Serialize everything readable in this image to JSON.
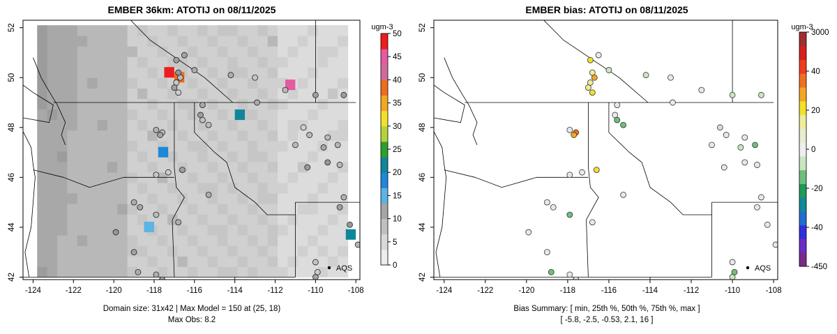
{
  "left_panel": {
    "title": "EMBER 36km: ATOTIJ on 08/11/2025",
    "footer_line1": "Domain size: 31x42 | Max Model = 150 at (25, 18)",
    "footer_line2": "Max Obs: 8.2",
    "colorbar_unit": "ugm-3",
    "colorbar_ticks": [
      "0",
      "5",
      "10",
      "15",
      "20",
      "25",
      "30",
      "35",
      "40",
      "45",
      "50"
    ],
    "colorbar_colors": [
      "#ededed",
      "#d9d9d9",
      "#c0c0c0",
      "#a6a6a6",
      "#5bb3e6",
      "#1e88d8",
      "#10869a",
      "#2ca02c",
      "#b4d23c",
      "#f2e02a",
      "#f5a623",
      "#ef6c1e",
      "#d26b9b",
      "#e45ba0",
      "#ee1c1c"
    ],
    "aqs_label": "AQS"
  },
  "right_panel": {
    "title": "EMBER bias: ATOTIJ on 08/11/2025",
    "footer_line1": "Bias Summary: [ min, 25th %, 50th %, 75th %, max ]",
    "footer_line2": "[ -5.8,   -2.5,   -0.53,   2.1,   16 ]",
    "colorbar_unit": "ugm-3",
    "colorbar_ticks": [
      "3000",
      "40",
      "20",
      "0",
      "-20",
      "-40",
      "-450"
    ],
    "colorbar_colors": [
      "#a03030",
      "#d62020",
      "#ef3c1e",
      "#f07020",
      "#f5a623",
      "#f2e02a",
      "#eeed9a",
      "#e8ecd0",
      "#eeeeee",
      "#c9e6c0",
      "#6fbf7a",
      "#1e9a5a",
      "#108a9a",
      "#1e6fd0",
      "#2f2fe0",
      "#6a2dc6",
      "#7a2a8a"
    ],
    "aqs_label": "AQS",
    "summary": {
      "min": -5.8,
      "p25": -2.5,
      "p50": -0.53,
      "p75": 2.1,
      "max": 16
    }
  },
  "axes": {
    "x_ticks": [
      "-124",
      "-122",
      "-120",
      "-118",
      "-116",
      "-114",
      "-112",
      "-110",
      "-108"
    ],
    "y_ticks": [
      "42",
      "44",
      "46",
      "48",
      "50",
      "52"
    ],
    "xlim": [
      -124.5,
      -107.8
    ],
    "ylim": [
      41.9,
      52.3
    ]
  },
  "chart_data": [
    {
      "type": "heatmap",
      "title": "EMBER 36km: ATOTIJ on 08/11/2025",
      "unit": "ugm-3",
      "colorbar_range": [
        0,
        50
      ],
      "hotspots": [
        {
          "lon": -117.5,
          "lat": 50.0,
          "value": 50
        },
        {
          "lon": -117.0,
          "lat": 49.8,
          "value": 40
        },
        {
          "lon": -111.5,
          "lat": 49.5,
          "value": 45
        },
        {
          "lon": -114.0,
          "lat": 48.3,
          "value": 20
        },
        {
          "lon": -117.8,
          "lat": 46.8,
          "value": 15
        },
        {
          "lon": -118.5,
          "lat": 43.8,
          "value": 12
        },
        {
          "lon": -108.5,
          "lat": 43.5,
          "value": 20
        }
      ],
      "max_model": 150,
      "max_obs": 8.2
    },
    {
      "type": "scatter",
      "title": "EMBER bias: ATOTIJ on 08/11/2025",
      "unit": "ugm-3",
      "series": [
        {
          "points": [
            {
              "lon": -116.9,
              "lat": 50.7,
              "bias": 6
            },
            {
              "lon": -116.8,
              "lat": 50.2,
              "bias": 2
            },
            {
              "lon": -116.7,
              "lat": 50.0,
              "bias": 12
            },
            {
              "lon": -116.9,
              "lat": 49.8,
              "bias": 3
            },
            {
              "lon": -117.0,
              "lat": 49.6,
              "bias": 4
            },
            {
              "lon": -116.8,
              "lat": 49.4,
              "bias": 5
            },
            {
              "lon": -116.0,
              "lat": 50.3,
              "bias": -2
            },
            {
              "lon": -116.5,
              "lat": 50.9,
              "bias": 0
            },
            {
              "lon": -114.2,
              "lat": 50.1,
              "bias": -2
            },
            {
              "lon": -113.0,
              "lat": 50.0,
              "bias": 0
            },
            {
              "lon": -112.9,
              "lat": 49.0,
              "bias": 0
            },
            {
              "lon": -115.6,
              "lat": 48.9,
              "bias": 0
            },
            {
              "lon": -115.7,
              "lat": 48.5,
              "bias": 0
            },
            {
              "lon": -115.6,
              "lat": 48.3,
              "bias": -3
            },
            {
              "lon": -115.3,
              "lat": 48.1,
              "bias": -3
            },
            {
              "lon": -117.9,
              "lat": 47.9,
              "bias": 0
            },
            {
              "lon": -117.6,
              "lat": 47.8,
              "bias": 18
            },
            {
              "lon": -117.7,
              "lat": 47.7,
              "bias": 14
            },
            {
              "lon": -117.3,
              "lat": 46.2,
              "bias": 0
            },
            {
              "lon": -116.6,
              "lat": 46.3,
              "bias": 5
            },
            {
              "lon": -117.9,
              "lat": 46.1,
              "bias": 0
            },
            {
              "lon": -115.3,
              "lat": 45.3,
              "bias": 0
            },
            {
              "lon": -119.0,
              "lat": 45.0,
              "bias": 0
            },
            {
              "lon": -118.7,
              "lat": 44.8,
              "bias": 0
            },
            {
              "lon": -117.9,
              "lat": 44.5,
              "bias": -3
            },
            {
              "lon": -116.8,
              "lat": 44.2,
              "bias": 0
            },
            {
              "lon": -119.9,
              "lat": 43.8,
              "bias": 0
            },
            {
              "lon": -119.0,
              "lat": 43.0,
              "bias": 0
            },
            {
              "lon": -117.9,
              "lat": 42.1,
              "bias": 0
            },
            {
              "lon": -118.8,
              "lat": 42.2,
              "bias": -4
            },
            {
              "lon": -117.6,
              "lat": 41.9,
              "bias": 0
            },
            {
              "lon": -110.0,
              "lat": 42.6,
              "bias": 0
            },
            {
              "lon": -109.9,
              "lat": 42.2,
              "bias": -3
            },
            {
              "lon": -110.0,
              "lat": 42.0,
              "bias": -2
            },
            {
              "lon": -108.8,
              "lat": 44.8,
              "bias": 0
            },
            {
              "lon": -108.6,
              "lat": 45.2,
              "bias": 0
            },
            {
              "lon": -108.3,
              "lat": 44.1,
              "bias": 0
            },
            {
              "lon": -107.9,
              "lat": 43.3,
              "bias": 0
            },
            {
              "lon": -109.4,
              "lat": 46.6,
              "bias": 0
            },
            {
              "lon": -108.8,
              "lat": 46.5,
              "bias": 0
            },
            {
              "lon": -109.4,
              "lat": 47.6,
              "bias": 0
            },
            {
              "lon": -109.6,
              "lat": 47.2,
              "bias": -2
            },
            {
              "lon": -110.6,
              "lat": 48.0,
              "bias": -2
            },
            {
              "lon": -110.3,
              "lat": 47.7,
              "bias": 0
            },
            {
              "lon": -111.0,
              "lat": 47.3,
              "bias": 0
            },
            {
              "lon": -110.4,
              "lat": 46.4,
              "bias": 0
            },
            {
              "lon": -110.0,
              "lat": 49.3,
              "bias": -2
            },
            {
              "lon": -108.6,
              "lat": 49.3,
              "bias": -2
            },
            {
              "lon": -111.5,
              "lat": 49.5,
              "bias": 0
            },
            {
              "lon": -108.9,
              "lat": 47.3,
              "bias": -4
            }
          ]
        }
      ],
      "bias_summary": {
        "min": -5.8,
        "p25": -2.5,
        "p50": -0.53,
        "p75": 2.1,
        "max": 16
      }
    }
  ]
}
